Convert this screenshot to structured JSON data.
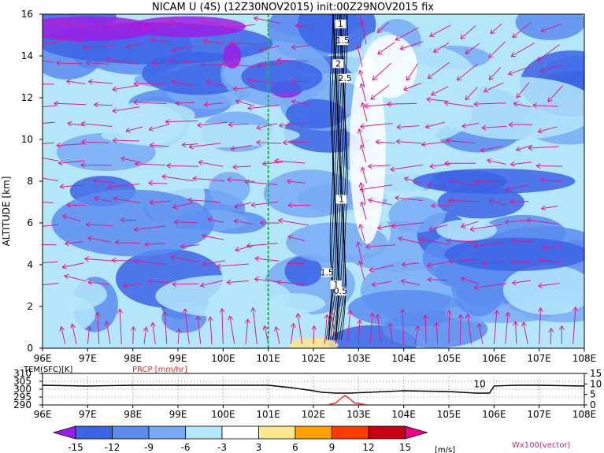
{
  "title": "NICAM U (4S) (12Z30NOV2015) init:00Z29NOV2015 fix",
  "chart_data": [
    {
      "type": "heatmap",
      "name": "main-cross-section",
      "ylabel": "ALTITUDE [km]",
      "x_ticks": [
        "96E",
        "97E",
        "98E",
        "99E",
        "100E",
        "101E",
        "102E",
        "103E",
        "104E",
        "105E",
        "106E",
        "107E",
        "108E"
      ],
      "y_ticks": [
        "0",
        "2",
        "4",
        "6",
        "8",
        "10",
        "12",
        "14",
        "16"
      ],
      "xlim": [
        96,
        108
      ],
      "ylim": [
        0,
        16
      ],
      "marker_line_lon": 101.0,
      "contour_labels": [
        "1",
        "1.5",
        "2",
        "2.5",
        "1",
        "1.5",
        "1",
        "0.5"
      ],
      "vector_label": "Wx100(vector)"
    },
    {
      "type": "line",
      "name": "surface-panel",
      "left_label": "TEM(SFC)[K]",
      "right_label": "PRCP [mm/hr]",
      "left_ticks": [
        "310",
        "305",
        "300",
        "295",
        "290"
      ],
      "right_ticks": [
        "15",
        "10",
        "5",
        "0"
      ],
      "left_ylim": [
        290,
        310
      ],
      "right_ylim": [
        0,
        15
      ],
      "annotation": "10",
      "x_ticks": [
        "96E",
        "97E",
        "98E",
        "99E",
        "100E",
        "101E",
        "102E",
        "103E",
        "104E",
        "105E",
        "106E",
        "107E",
        "108E"
      ],
      "series": [
        {
          "name": "TEM(SFC)[K]",
          "color": "#000000",
          "x": [
            96,
            97,
            98,
            99,
            100,
            101,
            101.5,
            102,
            102.2,
            102.5,
            102.8,
            103.2,
            104,
            105,
            105.6,
            105.9,
            106.0,
            106.5,
            107,
            108
          ],
          "y": [
            302.5,
            302,
            302.5,
            302.5,
            302.5,
            302.5,
            301,
            299,
            298,
            297.5,
            297.5,
            298,
            299,
            298.5,
            297.5,
            297.5,
            302,
            302.5,
            302.5,
            302
          ]
        },
        {
          "name": "PRCP [mm/hr]",
          "color": "#ff2020",
          "x": [
            96,
            102.3,
            102.5,
            102.6,
            102.7,
            102.8,
            102.9,
            103.2,
            108
          ],
          "y": [
            0,
            0,
            1,
            3,
            4.5,
            3,
            1,
            0,
            0
          ]
        }
      ]
    },
    {
      "type": "colorbar",
      "name": "colorbar",
      "unit": "[m/s]",
      "labels": [
        "-15",
        "-12",
        "-9",
        "-6",
        "-3",
        "3",
        "6",
        "9",
        "12",
        "15"
      ],
      "colors": [
        "#9b1ee6",
        "#3c64e6",
        "#5a8cf0",
        "#78aaf5",
        "#b4e6fa",
        "#ffffff",
        "#fae68c",
        "#ffa000",
        "#ff3c00",
        "#c80014",
        "#f00082"
      ]
    }
  ]
}
